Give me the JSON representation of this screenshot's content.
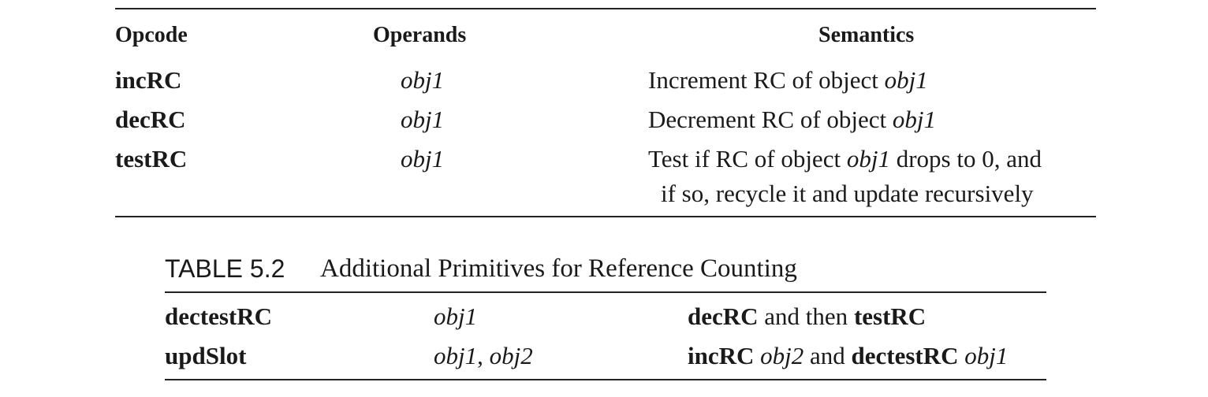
{
  "table1": {
    "headers": [
      "Opcode",
      "Operands",
      "Semantics"
    ],
    "rows": [
      {
        "opcode": "incRC",
        "operand": "obj1",
        "sem_pre": "Increment RC of object ",
        "sem_obj": "obj1"
      },
      {
        "opcode": "decRC",
        "operand": "obj1",
        "sem_pre": "Decrement RC of object ",
        "sem_obj": "obj1"
      },
      {
        "opcode": "testRC",
        "operand": "obj1",
        "sem_pre": "Test if RC of object ",
        "sem_obj": "obj1",
        "sem_post": " drops to 0, and",
        "sem_line2": "if so, recycle it and update recursively"
      }
    ]
  },
  "table2": {
    "label": "TABLE 5.2",
    "title": "Additional Primitives for Reference Counting",
    "rows": [
      {
        "opcode": "dectestRC",
        "operand": "obj1",
        "sem": [
          "decRC",
          " and then ",
          "testRC"
        ]
      },
      {
        "opcode": "updSlot",
        "operand_a": "obj1",
        "operand_sep": ", ",
        "operand_b": "obj2",
        "sem": [
          "incRC",
          " ",
          "obj2",
          " and ",
          "dectestRC",
          " ",
          "obj1"
        ]
      }
    ]
  }
}
